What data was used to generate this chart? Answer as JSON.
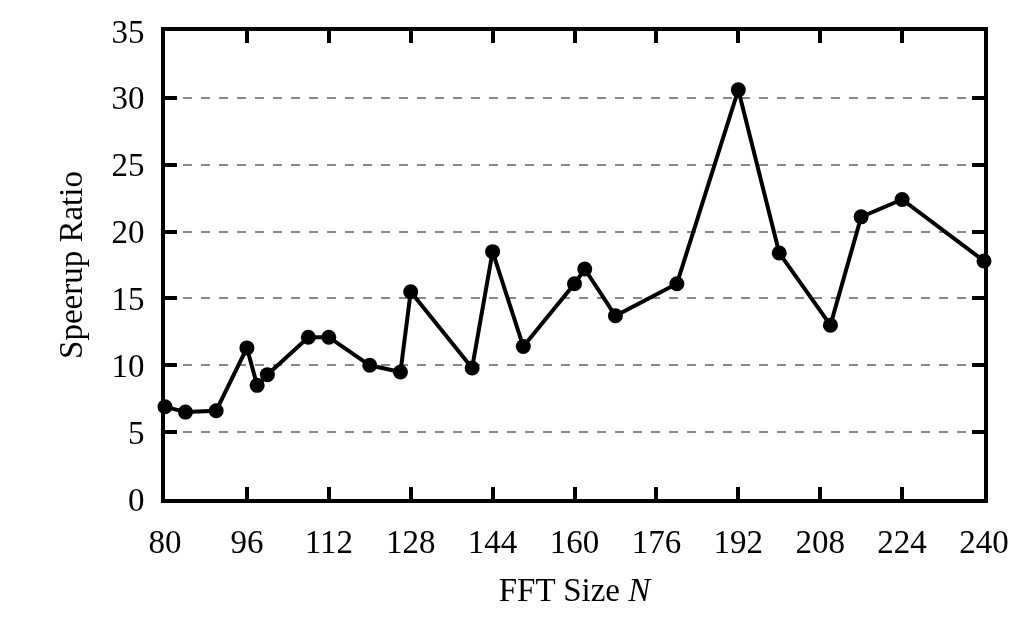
{
  "chart_data": {
    "type": "line",
    "xlabel": "FFT Size N",
    "ylabel": "Speerup Ratio",
    "x": [
      80,
      84,
      90,
      96,
      98,
      100,
      108,
      112,
      120,
      126,
      128,
      140,
      144,
      150,
      160,
      162,
      168,
      180,
      192,
      200,
      210,
      216,
      224,
      240
    ],
    "series": [
      {
        "color": "#000000",
        "values": [
          6.9,
          6.5,
          6.6,
          11.3,
          8.5,
          9.3,
          12.1,
          12.1,
          10.0,
          9.5,
          15.5,
          9.8,
          18.5,
          11.4,
          16.1,
          17.2,
          13.7,
          16.1,
          30.6,
          18.4,
          13.0,
          21.1,
          22.4,
          17.8
        ]
      }
    ],
    "xlim": [
      80,
      240
    ],
    "xticks": [
      80,
      96,
      112,
      128,
      144,
      160,
      176,
      192,
      208,
      224,
      240
    ],
    "ylim": [
      0,
      35
    ],
    "yticks": [
      0,
      5,
      10,
      15,
      20,
      25,
      30,
      35
    ],
    "grid": "y",
    "legend": false,
    "marker": "circle",
    "line_style": "solid"
  }
}
